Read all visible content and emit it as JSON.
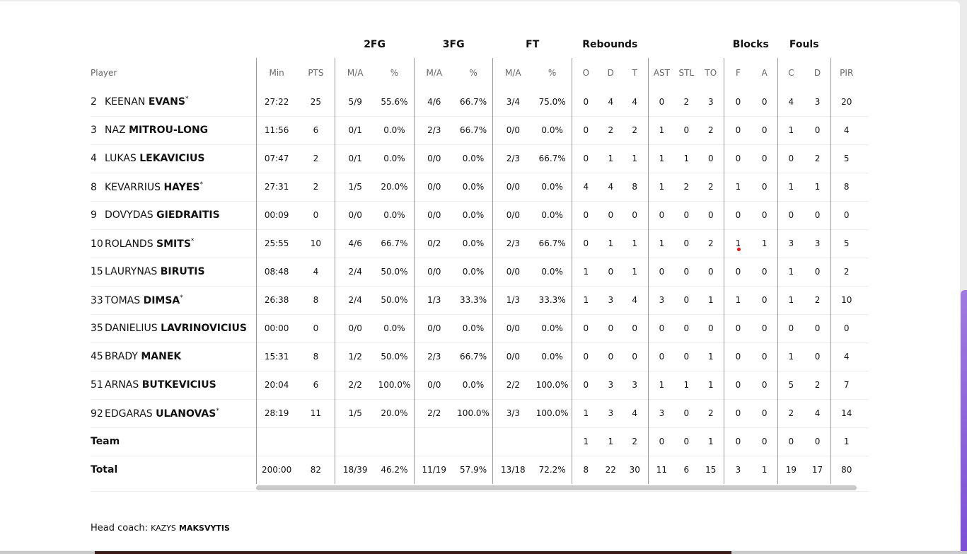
{
  "groups": [
    "2FG",
    "3FG",
    "FT",
    "Rebounds",
    "Blocks",
    "Fouls"
  ],
  "columns": [
    "Player",
    "Min",
    "PTS",
    "M/A",
    "%",
    "M/A",
    "%",
    "M/A",
    "%",
    "O",
    "D",
    "T",
    "AST",
    "STL",
    "TO",
    "F",
    "A",
    "C",
    "D",
    "PIR",
    "+/-"
  ],
  "rows": [
    {
      "num": "2",
      "first": "KEENAN",
      "last": "EVANS",
      "starter": true,
      "stats": [
        "27:22",
        "25",
        "5/9",
        "55.6%",
        "4/6",
        "66.7%",
        "3/4",
        "75.0%",
        "0",
        "4",
        "4",
        "0",
        "2",
        "3",
        "0",
        "0",
        "4",
        "3",
        "20",
        ""
      ]
    },
    {
      "num": "3",
      "first": "NAZ",
      "last": "MITROU-LONG",
      "starter": false,
      "stats": [
        "11:56",
        "6",
        "0/1",
        "0.0%",
        "2/3",
        "66.7%",
        "0/0",
        "0.0%",
        "0",
        "2",
        "2",
        "1",
        "0",
        "2",
        "0",
        "0",
        "1",
        "0",
        "4",
        ""
      ]
    },
    {
      "num": "4",
      "first": "LUKAS",
      "last": "LEKAVICIUS",
      "starter": false,
      "stats": [
        "07:47",
        "2",
        "0/1",
        "0.0%",
        "0/0",
        "0.0%",
        "2/3",
        "66.7%",
        "0",
        "1",
        "1",
        "1",
        "1",
        "0",
        "0",
        "0",
        "0",
        "2",
        "5",
        ""
      ]
    },
    {
      "num": "8",
      "first": "KEVARRIUS",
      "last": "HAYES",
      "starter": true,
      "stats": [
        "27:31",
        "2",
        "1/5",
        "20.0%",
        "0/0",
        "0.0%",
        "0/0",
        "0.0%",
        "4",
        "4",
        "8",
        "1",
        "2",
        "2",
        "1",
        "0",
        "1",
        "1",
        "8",
        ""
      ]
    },
    {
      "num": "9",
      "first": "DOVYDAS",
      "last": "GIEDRAITIS",
      "starter": false,
      "stats": [
        "00:09",
        "0",
        "0/0",
        "0.0%",
        "0/0",
        "0.0%",
        "0/0",
        "0.0%",
        "0",
        "0",
        "0",
        "0",
        "0",
        "0",
        "0",
        "0",
        "0",
        "0",
        "0",
        ""
      ]
    },
    {
      "num": "10",
      "first": "ROLANDS",
      "last": "SMITS",
      "starter": true,
      "stats": [
        "25:55",
        "10",
        "4/6",
        "66.7%",
        "0/2",
        "0.0%",
        "2/3",
        "66.7%",
        "0",
        "1",
        "1",
        "1",
        "0",
        "2",
        "1",
        "1",
        "3",
        "3",
        "5",
        ""
      ]
    },
    {
      "num": "15",
      "first": "LAURYNAS",
      "last": "BIRUTIS",
      "starter": false,
      "stats": [
        "08:48",
        "4",
        "2/4",
        "50.0%",
        "0/0",
        "0.0%",
        "0/0",
        "0.0%",
        "1",
        "0",
        "1",
        "0",
        "0",
        "0",
        "0",
        "0",
        "1",
        "0",
        "2",
        ""
      ]
    },
    {
      "num": "33",
      "first": "TOMAS",
      "last": "DIMSA",
      "starter": true,
      "stats": [
        "26:38",
        "8",
        "2/4",
        "50.0%",
        "1/3",
        "33.3%",
        "1/3",
        "33.3%",
        "1",
        "3",
        "4",
        "3",
        "0",
        "1",
        "1",
        "0",
        "1",
        "2",
        "10",
        ""
      ]
    },
    {
      "num": "35",
      "first": "DANIELIUS",
      "last": "LAVRINOVICIUS",
      "starter": false,
      "stats": [
        "00:00",
        "0",
        "0/0",
        "0.0%",
        "0/0",
        "0.0%",
        "0/0",
        "0.0%",
        "0",
        "0",
        "0",
        "0",
        "0",
        "0",
        "0",
        "0",
        "0",
        "0",
        "0",
        ""
      ]
    },
    {
      "num": "45",
      "first": "BRADY",
      "last": "MANEK",
      "starter": false,
      "stats": [
        "15:31",
        "8",
        "1/2",
        "50.0%",
        "2/3",
        "66.7%",
        "0/0",
        "0.0%",
        "0",
        "0",
        "0",
        "0",
        "0",
        "1",
        "0",
        "0",
        "1",
        "0",
        "4",
        ""
      ]
    },
    {
      "num": "51",
      "first": "ARNAS",
      "last": "BUTKEVICIUS",
      "starter": false,
      "stats": [
        "20:04",
        "6",
        "2/2",
        "100.0%",
        "0/0",
        "0.0%",
        "2/2",
        "100.0%",
        "0",
        "3",
        "3",
        "1",
        "1",
        "1",
        "0",
        "0",
        "5",
        "2",
        "7",
        ""
      ]
    },
    {
      "num": "92",
      "first": "EDGARAS",
      "last": "ULANOVAS",
      "starter": true,
      "stats": [
        "28:19",
        "11",
        "1/5",
        "20.0%",
        "2/2",
        "100.0%",
        "3/3",
        "100.0%",
        "1",
        "3",
        "4",
        "3",
        "0",
        "2",
        "0",
        "0",
        "2",
        "4",
        "14",
        ""
      ]
    }
  ],
  "team": {
    "label": "Team",
    "stats": [
      "",
      "",
      "",
      "",
      "",
      "",
      "",
      "",
      "1",
      "1",
      "2",
      "0",
      "0",
      "1",
      "0",
      "0",
      "0",
      "0",
      "1",
      ""
    ]
  },
  "total": {
    "label": "Total",
    "stats": [
      "200:00",
      "82",
      "18/39",
      "46.2%",
      "11/19",
      "57.9%",
      "13/18",
      "72.2%",
      "8",
      "22",
      "30",
      "11",
      "6",
      "15",
      "3",
      "1",
      "19",
      "17",
      "80",
      ""
    ]
  },
  "coach": {
    "label": "Head coach:",
    "first": "KAZYS",
    "last": "MAKSVYTIS"
  },
  "starter_mark": "*"
}
